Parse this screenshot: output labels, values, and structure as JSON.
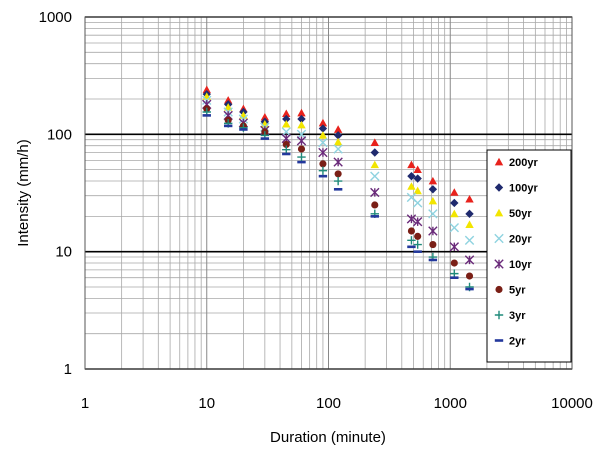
{
  "chart_data": {
    "type": "scatter",
    "xscale": "log",
    "yscale": "log",
    "xlim": [
      1,
      10000
    ],
    "ylim": [
      1,
      1000
    ],
    "xlabel": "Duration (minute)",
    "ylabel": "Intensity (mm/h)",
    "x_ticks": [
      "1",
      "10",
      "100",
      "1000",
      "10000"
    ],
    "y_ticks": [
      "1",
      "10",
      "100",
      "1000"
    ],
    "grid": true,
    "legend_position": "right",
    "x": [
      10,
      15,
      20,
      30,
      45,
      60,
      90,
      120,
      240,
      480,
      540,
      720,
      1080,
      1440
    ],
    "series": [
      {
        "name": "200yr",
        "color": "#e8221c",
        "marker": "triangle",
        "values": [
          240,
          195,
          165,
          140,
          150,
          152,
          125,
          110,
          85,
          55,
          50,
          40,
          32,
          28
        ]
      },
      {
        "name": "100yr",
        "color": "#1f2a6e",
        "marker": "diamond",
        "values": [
          220,
          180,
          155,
          128,
          135,
          135,
          112,
          98,
          70,
          44,
          42,
          34,
          26,
          21
        ]
      },
      {
        "name": "50yr",
        "color": "#f2e500",
        "marker": "triangle",
        "values": [
          210,
          170,
          145,
          122,
          122,
          120,
          98,
          86,
          55,
          36,
          33,
          27,
          21,
          17
        ]
      },
      {
        "name": "20yr",
        "color": "#8fd3e0",
        "marker": "x",
        "values": [
          195,
          155,
          135,
          115,
          105,
          100,
          85,
          75,
          44,
          29,
          26,
          21,
          16,
          12.5
        ]
      },
      {
        "name": "10yr",
        "color": "#6a2a7a",
        "marker": "star",
        "values": [
          180,
          145,
          125,
          108,
          92,
          88,
          70,
          58,
          32,
          19,
          18,
          15,
          11,
          8.5
        ]
      },
      {
        "name": "5yr",
        "color": "#7a1f16",
        "marker": "circle",
        "values": [
          165,
          132,
          118,
          105,
          82,
          75,
          56,
          46,
          25,
          15,
          13.5,
          11.5,
          8,
          6.2
        ]
      },
      {
        "name": "3yr",
        "color": "#1f8a7a",
        "marker": "plus",
        "values": [
          155,
          124,
          114,
          98,
          74,
          64,
          49,
          40,
          21,
          12.5,
          11.5,
          9,
          6.5,
          5
        ]
      },
      {
        "name": "2yr",
        "color": "#23389c",
        "marker": "dash",
        "values": [
          145,
          118,
          110,
          92,
          68,
          58,
          44,
          34,
          20,
          11,
          10,
          8.5,
          6,
          4.8
        ]
      }
    ]
  }
}
